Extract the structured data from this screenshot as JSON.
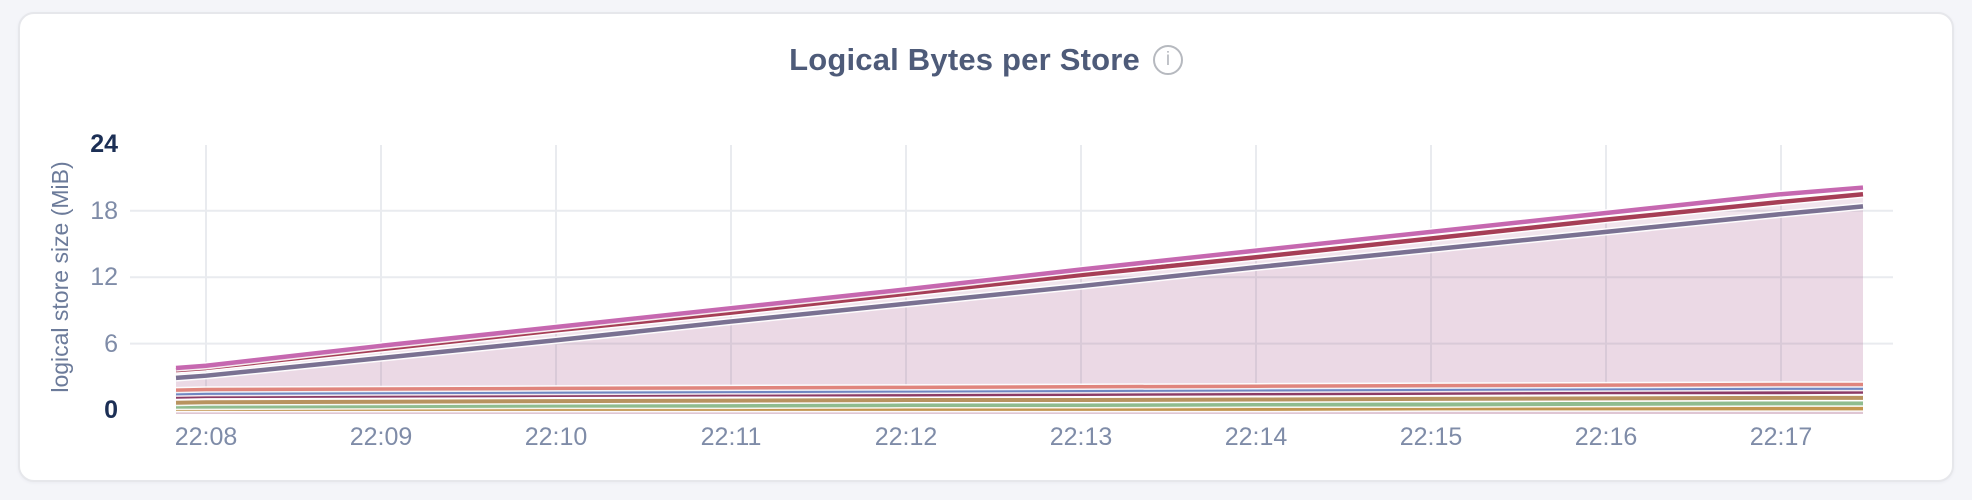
{
  "header": {
    "title": "Logical Bytes per Store",
    "info_glyph": "i"
  },
  "theme": {
    "page_bg": "#f4f5f9",
    "card_bg": "#ffffff",
    "card_border": "#e6e7eb",
    "title_color": "#4e5b79",
    "axis_title": "#6c7b9a",
    "tick": "#7f8ca8",
    "tick_bold": "#1c2f55",
    "grid": "#e9ebef",
    "info_icon": "#b6b9bf",
    "area_fill_strong": "rgba(150,70,124,0.07)",
    "area_fill_soft": "rgba(150,70,124,0.025)"
  },
  "chart_data": {
    "type": "area",
    "title": "Logical Bytes per Store",
    "xlabel": "",
    "ylabel": "logical store size (MiB)",
    "x": [
      "22:08",
      "22:09",
      "22:10",
      "22:11",
      "22:12",
      "22:13",
      "22:14",
      "22:15",
      "22:16",
      "22:17"
    ],
    "ylim": [
      0,
      24
    ],
    "yticks": [
      0,
      6,
      12,
      18,
      24
    ],
    "grid": true,
    "legend": "none",
    "series": [
      {
        "id": "1",
        "color": "#c668b0",
        "width": 4.5,
        "fill": "strong",
        "start": 3.8,
        "values": [
          4.0,
          5.8,
          7.5,
          9.2,
          10.9,
          12.7,
          14.4,
          16.1,
          17.8,
          19.5
        ],
        "end": 20.1
      },
      {
        "id": "2",
        "color": "#a63e56",
        "width": 4.5,
        "fill": "strong",
        "start": 3.6,
        "values": [
          3.8,
          5.5,
          7.2,
          8.8,
          10.5,
          12.2,
          13.8,
          15.5,
          17.2,
          18.8
        ],
        "end": 19.5
      },
      {
        "id": "3",
        "color": "#7a7192",
        "width": 4.5,
        "fill": "strong",
        "start": 2.9,
        "values": [
          3.1,
          4.7,
          6.3,
          8.0,
          9.6,
          11.2,
          12.9,
          14.5,
          16.1,
          17.7
        ],
        "end": 18.4
      },
      {
        "id": "4",
        "color": "#e0857d",
        "width": 3.5,
        "fill": "soft",
        "start": 1.8,
        "values": [
          1.85,
          1.9,
          1.95,
          2.0,
          2.05,
          2.1,
          2.15,
          2.2,
          2.25,
          2.3
        ],
        "end": 2.3
      },
      {
        "id": "5",
        "color": "#6f86c2",
        "width": 4,
        "fill": "soft",
        "start": 1.5,
        "values": [
          1.55,
          1.6,
          1.65,
          1.7,
          1.75,
          1.8,
          1.85,
          1.9,
          1.95,
          2.0
        ],
        "end": 2.0
      },
      {
        "id": "6",
        "color": "#8c3b66",
        "width": 4,
        "fill": "soft",
        "start": 1.2,
        "values": [
          1.25,
          1.3,
          1.35,
          1.4,
          1.4,
          1.45,
          1.5,
          1.55,
          1.6,
          1.6
        ],
        "end": 1.65
      },
      {
        "id": "7",
        "color": "#b8935f",
        "width": 4,
        "fill": "soft",
        "start": 0.65,
        "values": [
          0.7,
          0.75,
          0.8,
          0.85,
          0.9,
          0.9,
          0.95,
          1.0,
          1.05,
          1.1
        ],
        "end": 1.1
      },
      {
        "id": "8",
        "color": "#8fbc8f",
        "width": 4,
        "fill": "soft",
        "start": 0.3,
        "values": [
          0.3,
          0.35,
          0.4,
          0.4,
          0.45,
          0.45,
          0.5,
          0.5,
          0.55,
          0.6
        ],
        "end": 0.6
      },
      {
        "id": "9",
        "color": "#c3964f",
        "width": 4,
        "fill": "soft",
        "start": 0.1,
        "values": [
          0.1,
          0.1,
          0.1,
          0.1,
          0.1,
          0.1,
          0.1,
          0.15,
          0.15,
          0.15
        ],
        "end": 0.15
      }
    ]
  }
}
